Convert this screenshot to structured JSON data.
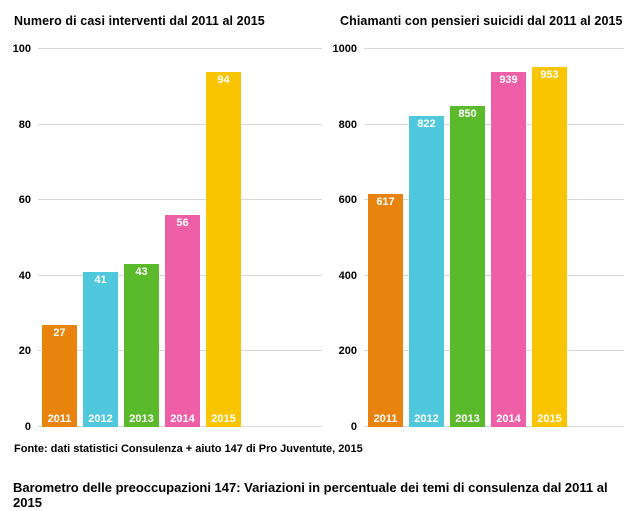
{
  "page": {
    "source_note": "Fonte: dati statistici Consulenza + aiuto 147 di Pro Juventute, 2015",
    "bottom_title": "Barometro delle preoccupazioni 147: Variazioni in percentuale dei temi di consulenza dal 2011 al 2015",
    "background_color": "#ffffff",
    "text_color": "#000000",
    "gridline_color": "#d8d8d8"
  },
  "chart_data": [
    {
      "type": "bar",
      "title": "Numero di casi interventi dal 2011 al 2015",
      "categories": [
        "2011",
        "2012",
        "2013",
        "2014",
        "2015"
      ],
      "values": [
        27,
        41,
        43,
        56,
        94
      ],
      "bar_colors": [
        "#E8830D",
        "#4FC8DD",
        "#5BB92C",
        "#EE5FA7",
        "#F8C500"
      ],
      "xlabel": "",
      "ylabel": "",
      "ylim": [
        0,
        100
      ],
      "yticks": [
        0,
        20,
        40,
        60,
        80,
        100
      ],
      "grid": true,
      "legend": "none",
      "value_labels": "inside-top",
      "category_labels": "inside-bottom"
    },
    {
      "type": "bar",
      "title": "Chiamanti con pensieri suicidi dal 2011 al 2015",
      "categories": [
        "2011",
        "2012",
        "2013",
        "2014",
        "2015"
      ],
      "values": [
        617,
        822,
        850,
        939,
        953
      ],
      "bar_colors": [
        "#E8830D",
        "#4FC8DD",
        "#5BB92C",
        "#EE5FA7",
        "#F8C500"
      ],
      "xlabel": "",
      "ylabel": "",
      "ylim": [
        0,
        1000
      ],
      "yticks": [
        0,
        200,
        400,
        600,
        800,
        1000
      ],
      "grid": true,
      "legend": "none",
      "value_labels": "inside-top",
      "category_labels": "inside-bottom"
    }
  ]
}
